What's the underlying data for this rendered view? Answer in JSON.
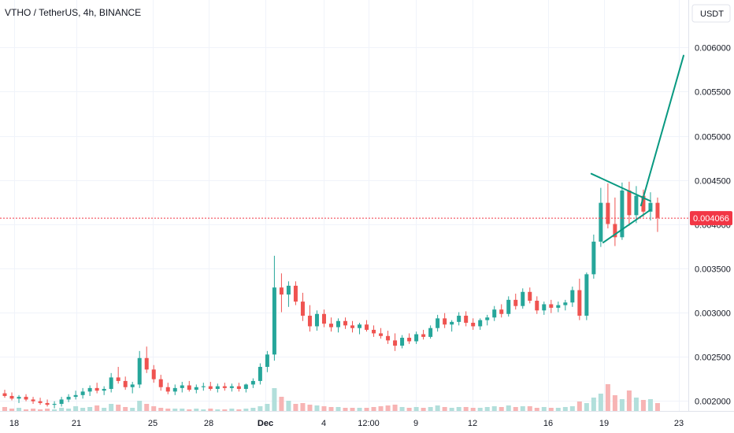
{
  "header": {
    "title": "VTHO / TetherUS, 4h, BINANCE"
  },
  "price_scale": {
    "currency": "USDT",
    "last_price_label": "0.004066"
  },
  "colors": {
    "up": "#26a69a",
    "down": "#ef5350",
    "volume_up": "#b2dfdb",
    "volume_down": "#f7b4b4",
    "drawing": "#089981",
    "grid": "#f0f3fa",
    "last_price": "#f23645"
  },
  "chart_data": {
    "type": "candlestick",
    "symbol": "VTHO / TetherUS",
    "interval": "4h",
    "exchange": "BINANCE",
    "x_tick_labels": [
      "18",
      "21",
      "25",
      "28",
      "Dec",
      "4",
      "12:00",
      "9",
      "12",
      "16",
      "19",
      "23"
    ],
    "y_tick_labels": [
      "0.006000",
      "0.005500",
      "0.005000",
      "0.004500",
      "0.004000",
      "0.003500",
      "0.003000",
      "0.002500",
      "0.002000"
    ],
    "y_ticks": [
      0.006,
      0.0055,
      0.005,
      0.0045,
      0.004,
      0.0035,
      0.003,
      0.0025,
      0.002
    ],
    "ylim": [
      0.00188,
      0.00654
    ],
    "xlim": [
      -2,
      289
    ],
    "last_price": 0.004066,
    "candles": [
      [
        0.00208,
        0.00212,
        0.00203,
        0.00205
      ],
      [
        0.00205,
        0.00209,
        0.002,
        0.00202
      ],
      [
        0.00202,
        0.00206,
        0.00197,
        0.00204
      ],
      [
        0.00204,
        0.00207,
        0.00199,
        0.00201
      ],
      [
        0.00201,
        0.00204,
        0.00196,
        0.00199
      ],
      [
        0.00199,
        0.00203,
        0.00195,
        0.00197
      ],
      [
        0.00197,
        0.00201,
        0.00193,
        0.00195
      ],
      [
        0.00195,
        0.00199,
        0.00191,
        0.00196
      ],
      [
        0.00196,
        0.00204,
        0.00193,
        0.00201
      ],
      [
        0.00201,
        0.00207,
        0.00198,
        0.00204
      ],
      [
        0.00204,
        0.00211,
        0.00201,
        0.00206
      ],
      [
        0.00206,
        0.00214,
        0.00202,
        0.0021
      ],
      [
        0.0021,
        0.00217,
        0.00205,
        0.00214
      ],
      [
        0.00214,
        0.0022,
        0.00208,
        0.00211
      ],
      [
        0.00211,
        0.00216,
        0.00206,
        0.00213
      ],
      [
        0.00213,
        0.00231,
        0.00209,
        0.00226
      ],
      [
        0.00226,
        0.00238,
        0.00219,
        0.00222
      ],
      [
        0.00222,
        0.00227,
        0.00212,
        0.00215
      ],
      [
        0.00215,
        0.00221,
        0.00208,
        0.00218
      ],
      [
        0.00218,
        0.00256,
        0.00214,
        0.00248
      ],
      [
        0.00248,
        0.00261,
        0.00231,
        0.00235
      ],
      [
        0.00235,
        0.0024,
        0.0022,
        0.00224
      ],
      [
        0.00224,
        0.00229,
        0.00211,
        0.00215
      ],
      [
        0.00215,
        0.0022,
        0.00207,
        0.0021
      ],
      [
        0.0021,
        0.00218,
        0.00206,
        0.00214
      ],
      [
        0.00214,
        0.00221,
        0.00209,
        0.00217
      ],
      [
        0.00217,
        0.00222,
        0.0021,
        0.00212
      ],
      [
        0.00212,
        0.00218,
        0.00208,
        0.00215
      ],
      [
        0.00215,
        0.0022,
        0.00211,
        0.00216
      ],
      [
        0.00216,
        0.00221,
        0.00211,
        0.00213
      ],
      [
        0.00213,
        0.00219,
        0.00209,
        0.00216
      ],
      [
        0.00216,
        0.0022,
        0.00211,
        0.00214
      ],
      [
        0.00214,
        0.00219,
        0.0021,
        0.00216
      ],
      [
        0.00216,
        0.0022,
        0.0021,
        0.00213
      ],
      [
        0.00213,
        0.00219,
        0.00209,
        0.00218
      ],
      [
        0.00218,
        0.00225,
        0.00214,
        0.00222
      ],
      [
        0.00222,
        0.00242,
        0.00218,
        0.00238
      ],
      [
        0.00238,
        0.00256,
        0.00232,
        0.00252
      ],
      [
        0.00252,
        0.00364,
        0.00245,
        0.00328
      ],
      [
        0.00328,
        0.00344,
        0.003,
        0.0032
      ],
      [
        0.0032,
        0.00335,
        0.00306,
        0.0033
      ],
      [
        0.0033,
        0.00335,
        0.00308,
        0.00312
      ],
      [
        0.00312,
        0.00322,
        0.0029,
        0.00296
      ],
      [
        0.00296,
        0.00308,
        0.00278,
        0.00284
      ],
      [
        0.00284,
        0.00302,
        0.00279,
        0.00298
      ],
      [
        0.00298,
        0.00303,
        0.00283,
        0.00287
      ],
      [
        0.00287,
        0.00294,
        0.00278,
        0.00283
      ],
      [
        0.00283,
        0.00293,
        0.00277,
        0.0029
      ],
      [
        0.0029,
        0.00294,
        0.00281,
        0.00285
      ],
      [
        0.00285,
        0.0029,
        0.00277,
        0.00282
      ],
      [
        0.00282,
        0.00288,
        0.00275,
        0.00286
      ],
      [
        0.00286,
        0.00291,
        0.00278,
        0.0028
      ],
      [
        0.0028,
        0.00285,
        0.00272,
        0.00276
      ],
      [
        0.00276,
        0.00282,
        0.0027,
        0.00273
      ],
      [
        0.00273,
        0.00279,
        0.00264,
        0.00268
      ],
      [
        0.00268,
        0.00276,
        0.00256,
        0.00262
      ],
      [
        0.00262,
        0.00274,
        0.00259,
        0.00271
      ],
      [
        0.00271,
        0.00276,
        0.00264,
        0.00267
      ],
      [
        0.00267,
        0.00278,
        0.00264,
        0.00275
      ],
      [
        0.00275,
        0.0028,
        0.00269,
        0.00272
      ],
      [
        0.00272,
        0.00285,
        0.0027,
        0.00282
      ],
      [
        0.00282,
        0.00297,
        0.00278,
        0.00293
      ],
      [
        0.00293,
        0.00299,
        0.00282,
        0.00286
      ],
      [
        0.00286,
        0.00291,
        0.00278,
        0.00289
      ],
      [
        0.00289,
        0.003,
        0.00285,
        0.00296
      ],
      [
        0.00296,
        0.00301,
        0.00284,
        0.00288
      ],
      [
        0.00288,
        0.00293,
        0.0028,
        0.00284
      ],
      [
        0.00284,
        0.00293,
        0.0028,
        0.00291
      ],
      [
        0.00291,
        0.00297,
        0.00285,
        0.00294
      ],
      [
        0.00294,
        0.00307,
        0.0029,
        0.00303
      ],
      [
        0.00303,
        0.00309,
        0.00294,
        0.00298
      ],
      [
        0.00298,
        0.00318,
        0.00295,
        0.00314
      ],
      [
        0.00314,
        0.00321,
        0.00303,
        0.00307
      ],
      [
        0.00307,
        0.00327,
        0.00304,
        0.00323
      ],
      [
        0.00323,
        0.00328,
        0.0031,
        0.00313
      ],
      [
        0.00313,
        0.00318,
        0.00298,
        0.00302
      ],
      [
        0.00302,
        0.00312,
        0.00297,
        0.00309
      ],
      [
        0.00309,
        0.00314,
        0.00299,
        0.00305
      ],
      [
        0.00305,
        0.00312,
        0.003,
        0.00308
      ],
      [
        0.00308,
        0.00314,
        0.00302,
        0.00311
      ],
      [
        0.00311,
        0.00329,
        0.00306,
        0.00325
      ],
      [
        0.00325,
        0.00338,
        0.00291,
        0.00296
      ],
      [
        0.00296,
        0.00345,
        0.00291,
        0.00343
      ],
      [
        0.00343,
        0.00388,
        0.00338,
        0.0038
      ],
      [
        0.0038,
        0.00441,
        0.00374,
        0.00424
      ],
      [
        0.00424,
        0.00446,
        0.00395,
        0.004
      ],
      [
        0.004,
        0.0043,
        0.00375,
        0.00385
      ],
      [
        0.00385,
        0.00447,
        0.00382,
        0.00438
      ],
      [
        0.00438,
        0.00448,
        0.00398,
        0.0041
      ],
      [
        0.0041,
        0.00443,
        0.00401,
        0.00432
      ],
      [
        0.00432,
        0.00439,
        0.00408,
        0.00414
      ],
      [
        0.00414,
        0.00436,
        0.00404,
        0.00424
      ],
      [
        0.00424,
        0.0043,
        0.00391,
        0.00407
      ]
    ],
    "candle_x": [
      0,
      3,
      6,
      9,
      12,
      15,
      18,
      21,
      24,
      27,
      30,
      33,
      36,
      39,
      42,
      45,
      48,
      51,
      54,
      57,
      60,
      63,
      66,
      69,
      72,
      75,
      78,
      81,
      84,
      87,
      90,
      93,
      96,
      99,
      102,
      105,
      108,
      111,
      114,
      117,
      120,
      123,
      126,
      129,
      132,
      135,
      138,
      141,
      144,
      147,
      150,
      153,
      156,
      159,
      162,
      165,
      168,
      171,
      174,
      177,
      180,
      183,
      186,
      189,
      192,
      195,
      198,
      201,
      204,
      207,
      210,
      213,
      216,
      219,
      222,
      225,
      228,
      231,
      234,
      237,
      240,
      243,
      246,
      249,
      252,
      255,
      258,
      261,
      264,
      267,
      270,
      273,
      276,
      279
    ],
    "volume": [
      5,
      3,
      4,
      2,
      3,
      2,
      3,
      2,
      4,
      3,
      6,
      4,
      5,
      7,
      4,
      9,
      8,
      5,
      4,
      13,
      9,
      6,
      4,
      3,
      3,
      3,
      2,
      3,
      2,
      3,
      2,
      2,
      3,
      2,
      3,
      4,
      6,
      9,
      29,
      18,
      13,
      9,
      10,
      8,
      7,
      6,
      5,
      5,
      4,
      4,
      4,
      4,
      5,
      6,
      7,
      8,
      5,
      4,
      5,
      4,
      5,
      7,
      5,
      4,
      5,
      5,
      4,
      4,
      5,
      6,
      5,
      7,
      5,
      6,
      6,
      4,
      5,
      4,
      4,
      5,
      6,
      12,
      10,
      17,
      22,
      34,
      20,
      15,
      26,
      17,
      14,
      15,
      10,
      7
    ],
    "volume_max": 100,
    "drawing_lines": [
      [
        [
          248,
          0.00457
        ],
        [
          273,
          0.00426
        ]
      ],
      [
        [
          253,
          0.00379
        ],
        [
          273,
          0.00416
        ]
      ],
      [
        [
          269,
          0.00421
        ],
        [
          287,
          0.00591
        ]
      ]
    ],
    "grid": true
  }
}
